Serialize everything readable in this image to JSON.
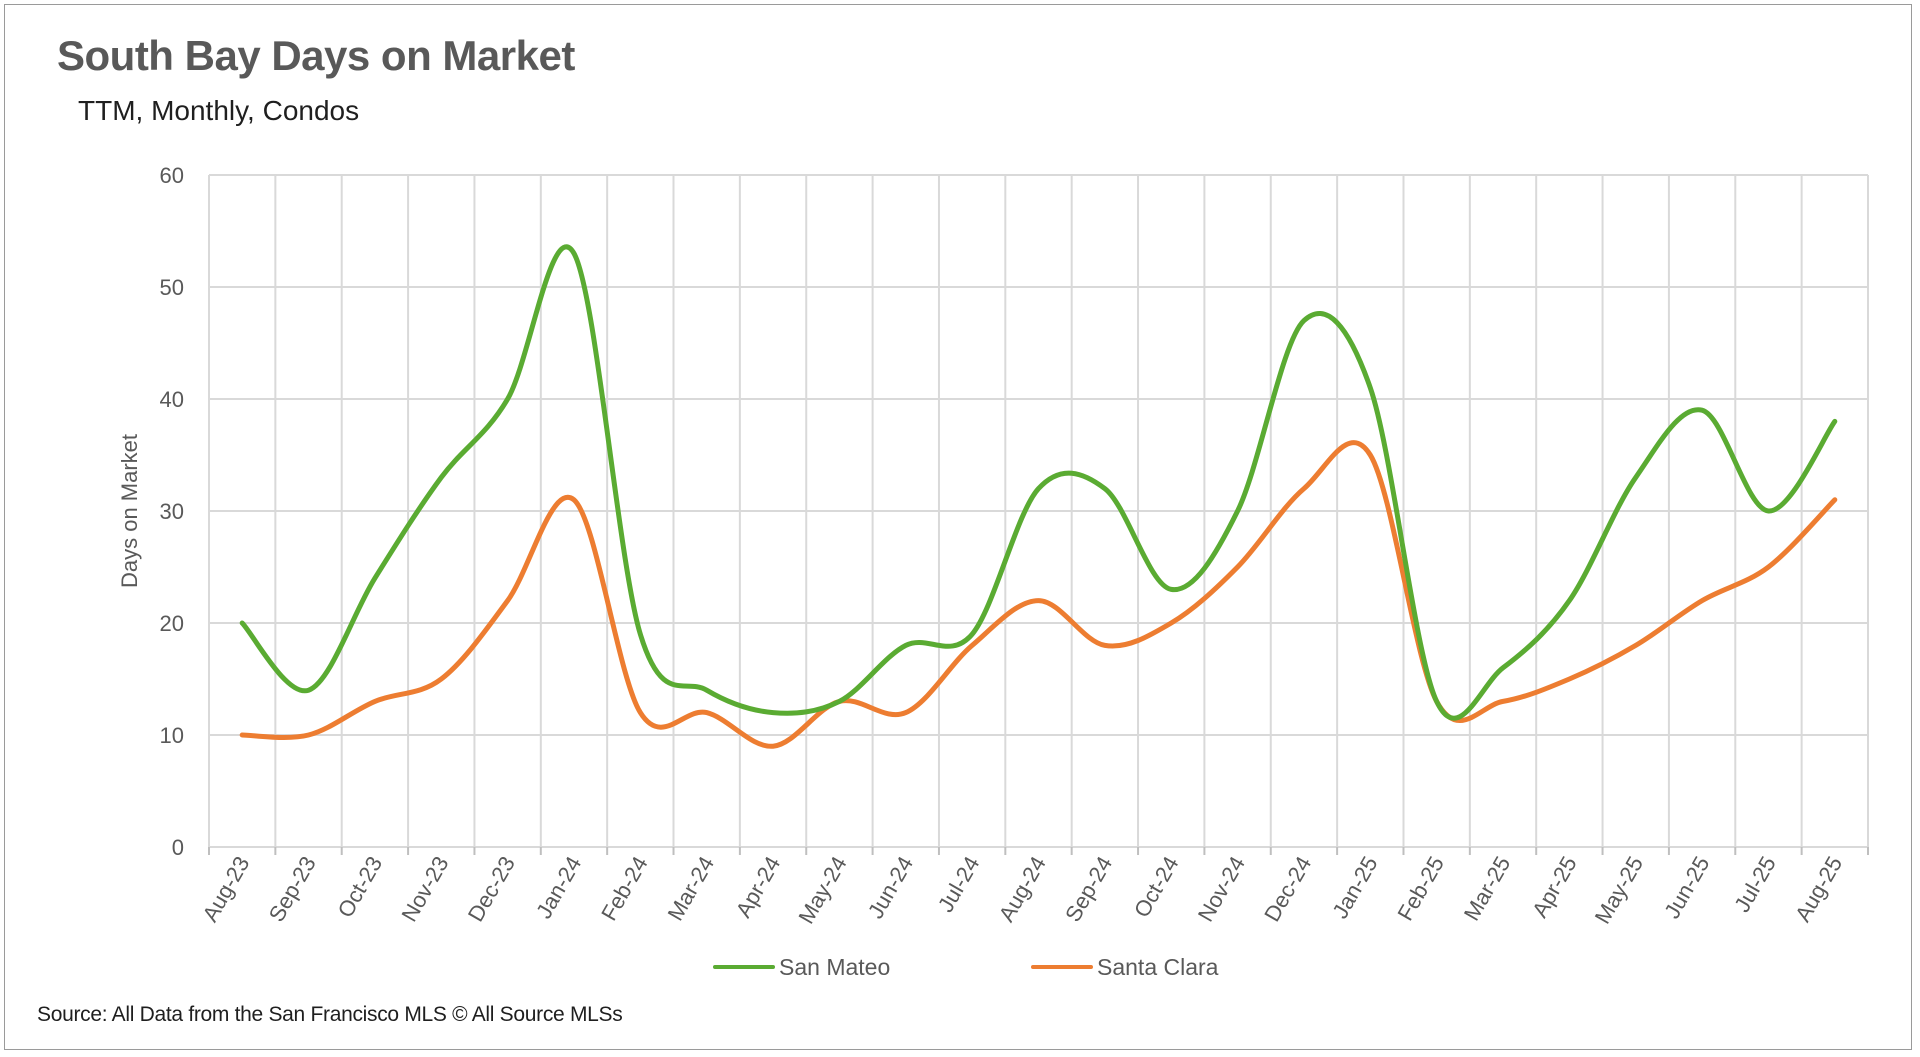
{
  "title": "South Bay Days on Market",
  "subtitle": "TTM, Monthly, Condos",
  "source": "Source: All Data from the San Francisco MLS © All Source MLSs",
  "colors": {
    "san_mateo": "#5aab32",
    "santa_clara": "#ed7d31",
    "grid": "#d9d9d9",
    "axis_text": "#595959"
  },
  "chart_data": {
    "type": "line",
    "title": "South Bay Days on Market",
    "subtitle": "TTM, Monthly, Condos",
    "xlabel": "",
    "ylabel": "Days on Market",
    "ylim": [
      0,
      60
    ],
    "yticks": [
      0,
      10,
      20,
      30,
      40,
      50,
      60
    ],
    "grid": true,
    "legend": "bottom",
    "smooth": true,
    "categories": [
      "Aug-23",
      "Sep-23",
      "Oct-23",
      "Nov-23",
      "Dec-23",
      "Jan-24",
      "Feb-24",
      "Mar-24",
      "Apr-24",
      "May-24",
      "Jun-24",
      "Jul-24",
      "Aug-24",
      "Sep-24",
      "Oct-24",
      "Nov-24",
      "Dec-24",
      "Jan-25",
      "Feb-25",
      "Mar-25",
      "Apr-25",
      "May-25",
      "Jun-25",
      "Jul-25",
      "Aug-25"
    ],
    "series": [
      {
        "name": "San Mateo",
        "color": "#5aab32",
        "values": [
          20,
          14,
          24,
          33,
          40,
          53,
          19,
          14,
          12,
          13,
          18,
          19,
          32,
          32,
          23,
          30,
          47,
          41,
          13,
          16,
          22,
          33,
          39,
          30,
          38
        ]
      },
      {
        "name": "Santa Clara",
        "color": "#ed7d31",
        "values": [
          10,
          10,
          13,
          15,
          22,
          31,
          12,
          12,
          9,
          13,
          12,
          18,
          22,
          18,
          20,
          25,
          32,
          35,
          13,
          13,
          15,
          18,
          22,
          25,
          31
        ]
      }
    ]
  }
}
